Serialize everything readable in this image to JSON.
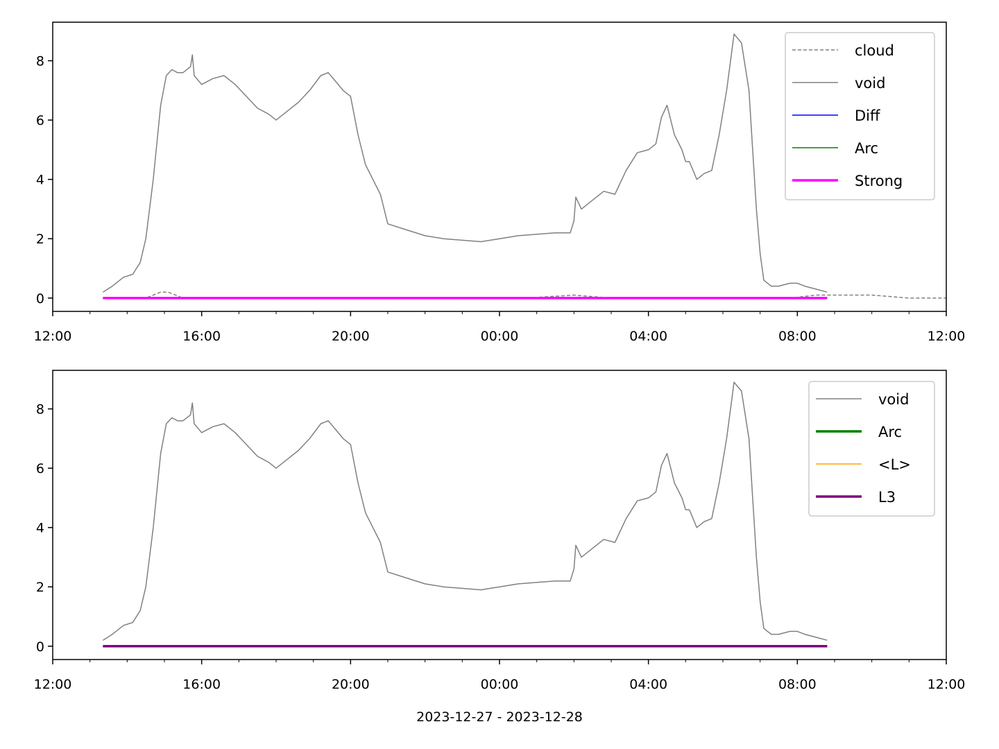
{
  "figure": {
    "xlabel": "2023-12-27 - 2023-12-28"
  },
  "chart_data": [
    {
      "type": "line",
      "x_ticks": [
        "12:00",
        "16:00",
        "20:00",
        "00:00",
        "04:00",
        "08:00",
        "12:00"
      ],
      "x_range_hours": [
        0,
        24
      ],
      "y_ticks": [
        "0",
        "2",
        "4",
        "6",
        "8"
      ],
      "ylim": [
        -0.45,
        9.3
      ],
      "legend_position": "upper-right",
      "grid": false,
      "series": [
        {
          "name": "cloud",
          "color": "#808080",
          "style": "dashed",
          "width": 1.5,
          "x": [
            1.35,
            2.5,
            2.9,
            3.1,
            3.5,
            4.5,
            5.0,
            7.5,
            8.0,
            9.4,
            12.7,
            14.0,
            15.0,
            16.5,
            19.8,
            20.5,
            21.0,
            22.0,
            23.0,
            24.0
          ],
          "y": [
            0,
            0,
            0.2,
            0.2,
            0,
            0,
            0,
            0,
            0,
            0,
            0,
            0.1,
            0,
            0,
            0,
            0.1,
            0.1,
            0.1,
            0,
            0
          ]
        },
        {
          "name": "void",
          "color": "#808080",
          "style": "solid",
          "width": 1.5,
          "x": [
            1.35,
            1.6,
            1.9,
            2.15,
            2.35,
            2.5,
            2.7,
            2.9,
            3.05,
            3.2,
            3.35,
            3.5,
            3.7,
            3.75,
            3.8,
            4.0,
            4.3,
            4.6,
            4.9,
            5.2,
            5.5,
            5.8,
            6.0,
            6.3,
            6.6,
            6.9,
            7.2,
            7.4,
            7.6,
            7.8,
            8.0,
            8.2,
            8.4,
            8.6,
            8.8,
            9.0,
            9.5,
            10.0,
            10.5,
            11.0,
            11.5,
            12.0,
            12.5,
            13.0,
            13.5,
            13.9,
            14.0,
            14.05,
            14.2,
            14.5,
            14.8,
            15.1,
            15.4,
            15.7,
            16.0,
            16.2,
            16.35,
            16.5,
            16.7,
            16.9,
            17.0,
            17.1,
            17.3,
            17.5,
            17.7,
            17.9,
            18.1,
            18.3,
            18.5,
            18.7,
            18.8,
            18.9,
            19.0,
            19.1,
            19.2,
            19.3,
            19.5,
            19.8,
            20.0,
            20.2,
            20.5,
            20.8
          ],
          "y": [
            0.2,
            0.4,
            0.7,
            0.8,
            1.2,
            2.0,
            4.0,
            6.5,
            7.5,
            7.7,
            7.6,
            7.6,
            7.8,
            8.2,
            7.5,
            7.2,
            7.4,
            7.5,
            7.2,
            6.8,
            6.4,
            6.2,
            6.0,
            6.3,
            6.6,
            7.0,
            7.5,
            7.6,
            7.3,
            7.0,
            6.8,
            5.5,
            4.5,
            4.0,
            3.5,
            2.5,
            2.3,
            2.1,
            2.0,
            1.95,
            1.9,
            2.0,
            2.1,
            2.15,
            2.2,
            2.2,
            2.6,
            3.4,
            3.0,
            3.3,
            3.6,
            3.5,
            4.3,
            4.9,
            5.0,
            5.2,
            6.1,
            6.5,
            5.5,
            5.0,
            4.6,
            4.6,
            4.0,
            4.2,
            4.3,
            5.5,
            7.0,
            8.9,
            8.6,
            7.0,
            5.0,
            3.0,
            1.5,
            0.6,
            0.5,
            0.4,
            0.4,
            0.5,
            0.5,
            0.4,
            0.3,
            0.2
          ]
        },
        {
          "name": "Diff",
          "color": "#0000ff",
          "style": "solid",
          "width": 1.5,
          "x": [
            1.35,
            20.8
          ],
          "y": [
            0,
            0
          ]
        },
        {
          "name": "Arc",
          "color": "#008000",
          "style": "solid",
          "width": 1.5,
          "x": [
            1.35,
            20.8
          ],
          "y": [
            0,
            0
          ]
        },
        {
          "name": "Strong",
          "color": "#ff00ff",
          "style": "solid",
          "width": 3.5,
          "x": [
            1.35,
            20.8
          ],
          "y": [
            0,
            0
          ]
        }
      ]
    },
    {
      "type": "line",
      "x_ticks": [
        "12:00",
        "16:00",
        "20:00",
        "00:00",
        "04:00",
        "08:00",
        "12:00"
      ],
      "x_range_hours": [
        0,
        24
      ],
      "y_ticks": [
        "0",
        "2",
        "4",
        "6",
        "8"
      ],
      "ylim": [
        -0.45,
        9.3
      ],
      "legend_position": "upper-right",
      "grid": false,
      "series": [
        {
          "name": "void",
          "color": "#808080",
          "style": "solid",
          "width": 1.5,
          "x": [
            1.35,
            1.6,
            1.9,
            2.15,
            2.35,
            2.5,
            2.7,
            2.9,
            3.05,
            3.2,
            3.35,
            3.5,
            3.7,
            3.75,
            3.8,
            4.0,
            4.3,
            4.6,
            4.9,
            5.2,
            5.5,
            5.8,
            6.0,
            6.3,
            6.6,
            6.9,
            7.2,
            7.4,
            7.6,
            7.8,
            8.0,
            8.2,
            8.4,
            8.6,
            8.8,
            9.0,
            9.5,
            10.0,
            10.5,
            11.0,
            11.5,
            12.0,
            12.5,
            13.0,
            13.5,
            13.9,
            14.0,
            14.05,
            14.2,
            14.5,
            14.8,
            15.1,
            15.4,
            15.7,
            16.0,
            16.2,
            16.35,
            16.5,
            16.7,
            16.9,
            17.0,
            17.1,
            17.3,
            17.5,
            17.7,
            17.9,
            18.1,
            18.3,
            18.5,
            18.7,
            18.8,
            18.9,
            19.0,
            19.1,
            19.2,
            19.3,
            19.5,
            19.8,
            20.0,
            20.2,
            20.5,
            20.8
          ],
          "y": [
            0.2,
            0.4,
            0.7,
            0.8,
            1.2,
            2.0,
            4.0,
            6.5,
            7.5,
            7.7,
            7.6,
            7.6,
            7.8,
            8.2,
            7.5,
            7.2,
            7.4,
            7.5,
            7.2,
            6.8,
            6.4,
            6.2,
            6.0,
            6.3,
            6.6,
            7.0,
            7.5,
            7.6,
            7.3,
            7.0,
            6.8,
            5.5,
            4.5,
            4.0,
            3.5,
            2.5,
            2.3,
            2.1,
            2.0,
            1.95,
            1.9,
            2.0,
            2.1,
            2.15,
            2.2,
            2.2,
            2.6,
            3.4,
            3.0,
            3.3,
            3.6,
            3.5,
            4.3,
            4.9,
            5.0,
            5.2,
            6.1,
            6.5,
            5.5,
            5.0,
            4.6,
            4.6,
            4.0,
            4.2,
            4.3,
            5.5,
            7.0,
            8.9,
            8.6,
            7.0,
            5.0,
            3.0,
            1.5,
            0.6,
            0.5,
            0.4,
            0.4,
            0.5,
            0.5,
            0.4,
            0.3,
            0.2
          ]
        },
        {
          "name": "Arc",
          "color": "#008000",
          "style": "solid",
          "width": 3.5,
          "x": [
            1.35,
            20.8
          ],
          "y": [
            0,
            0
          ]
        },
        {
          "name": "<L>",
          "color": "#ffa500",
          "style": "solid",
          "width": 1.5,
          "x": [
            1.35,
            20.8
          ],
          "y": [
            0,
            0
          ]
        },
        {
          "name": "L3",
          "color": "#800080",
          "style": "solid",
          "width": 3.5,
          "x": [
            1.35,
            20.8
          ],
          "y": [
            0,
            0
          ]
        }
      ]
    }
  ]
}
